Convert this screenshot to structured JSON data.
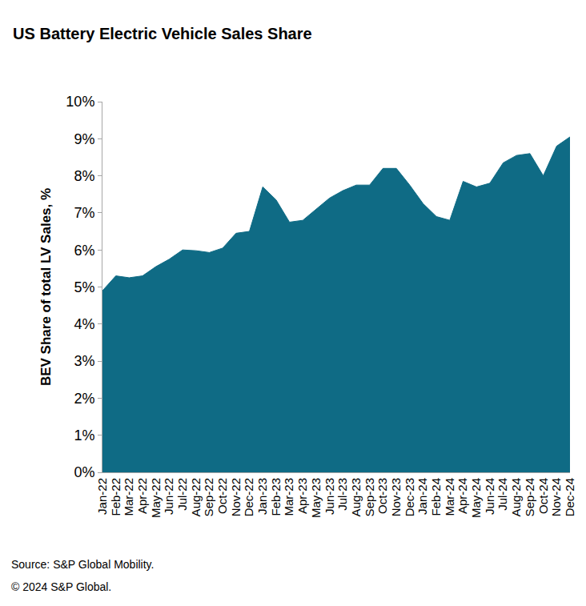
{
  "chart_data": {
    "type": "area",
    "title": "US Battery Electric Vehicle Sales Share",
    "y_label": "BEV Share of total LV Sales, %",
    "categories": [
      "Jan-22",
      "Feb-22",
      "Mar-22",
      "Apr-22",
      "May-22",
      "Jun-22",
      "Jul-22",
      "Aug-22",
      "Sep-22",
      "Oct-22",
      "Nov-22",
      "Dec-22",
      "Jan-23",
      "Feb-23",
      "Mar-23",
      "Apr-23",
      "May-23",
      "Jun-23",
      "Jul-23",
      "Aug-23",
      "Sep-23",
      "Oct-23",
      "Nov-23",
      "Dec-23",
      "Jan-24",
      "Feb-24",
      "Mar-24",
      "Apr-24",
      "May-24",
      "Jun-24",
      "Jul-24",
      "Aug-24",
      "Sep-24",
      "Oct-24",
      "Nov-24",
      "Dec-24"
    ],
    "values": [
      4.9,
      5.3,
      5.25,
      5.3,
      5.55,
      5.75,
      6.0,
      5.98,
      5.93,
      6.05,
      6.45,
      6.5,
      7.7,
      7.35,
      6.75,
      6.8,
      7.1,
      7.4,
      7.6,
      7.75,
      7.75,
      8.2,
      8.2,
      7.75,
      7.25,
      6.9,
      6.8,
      7.85,
      7.7,
      7.8,
      8.35,
      8.55,
      8.6,
      8.0,
      8.8,
      9.05
    ],
    "color": "#0f6b85",
    "ylim": [
      0,
      10
    ],
    "yticks": [
      {
        "value": 0,
        "label": "0%"
      },
      {
        "value": 1,
        "label": "1%"
      },
      {
        "value": 2,
        "label": "2%"
      },
      {
        "value": 3,
        "label": "3%"
      },
      {
        "value": 4,
        "label": "4%"
      },
      {
        "value": 5,
        "label": "5%"
      },
      {
        "value": 6,
        "label": "6%"
      },
      {
        "value": 7,
        "label": "7%"
      },
      {
        "value": 8,
        "label": "8%"
      },
      {
        "value": 9,
        "label": "9%"
      },
      {
        "value": 10,
        "label": "10%"
      }
    ],
    "grid": false,
    "annotations": [
      "Source: S&P Global Mobility.",
      "© 2024 S&P Global."
    ]
  }
}
